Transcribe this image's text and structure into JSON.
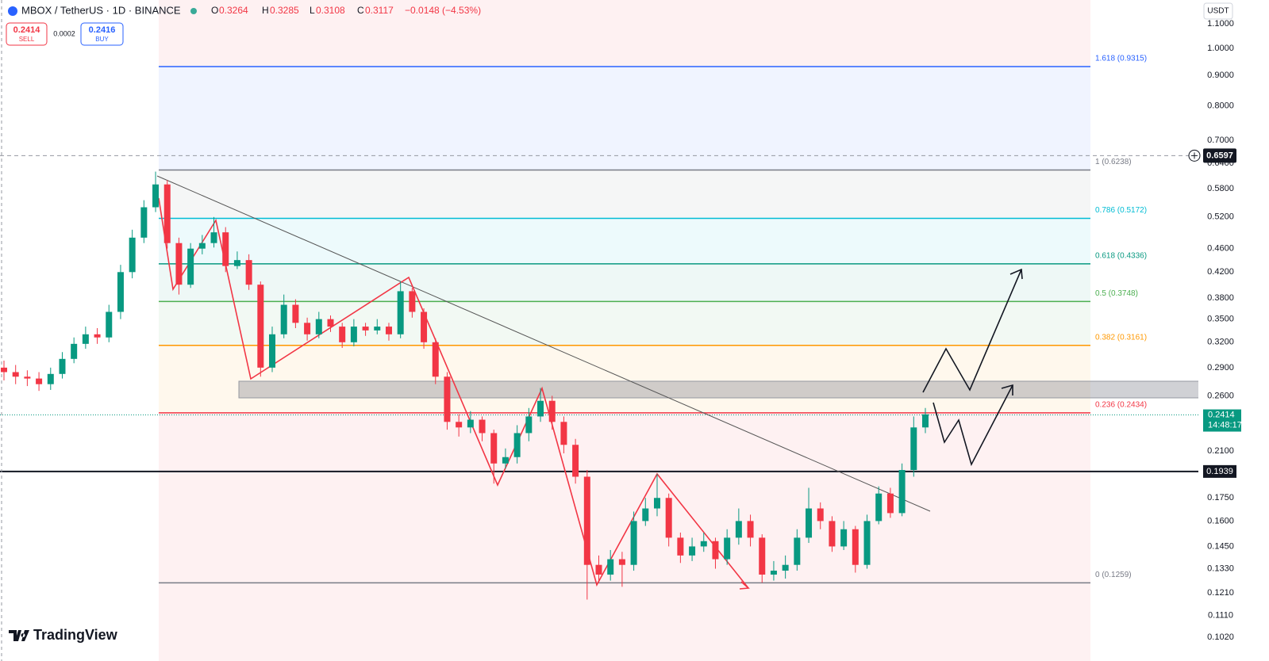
{
  "chart_data": {
    "type": "candlestick",
    "title": "MBOX / TetherUS · 1D · BINANCE",
    "ohlc_letters": [
      "O",
      "H",
      "L",
      "C"
    ],
    "ohlc_values": [
      0.3264,
      0.3285,
      0.3108,
      0.3117
    ],
    "change": {
      "value": -0.0148,
      "label": "−0.0148 (−4.53%)"
    },
    "sell": {
      "value": 0.2414,
      "label": "SELL"
    },
    "spread": 0.0002,
    "buy": {
      "value": 0.2416,
      "label": "BUY"
    },
    "currency": "USDT",
    "brand": "TradingView",
    "log_scale": true,
    "grid": false,
    "up_color": "#089981",
    "down_color": "#f23645",
    "ylim": [
      0.093,
      1.206
    ],
    "yticks": [
      {
        "value": 1.1,
        "label": "1.1000"
      },
      {
        "value": 1,
        "label": "1.0000"
      },
      {
        "value": 0.9,
        "label": "0.9000"
      },
      {
        "value": 0.8,
        "label": "0.8000"
      },
      {
        "value": 0.7,
        "label": "0.7000"
      },
      {
        "value": 0.64,
        "label": "0.6400"
      },
      {
        "value": 0.58,
        "label": "0.5800"
      },
      {
        "value": 0.52,
        "label": "0.5200"
      },
      {
        "value": 0.46,
        "label": "0.4600"
      },
      {
        "value": 0.42,
        "label": "0.4200"
      },
      {
        "value": 0.38,
        "label": "0.3800"
      },
      {
        "value": 0.35,
        "label": "0.3500"
      },
      {
        "value": 0.32,
        "label": "0.3200"
      },
      {
        "value": 0.29,
        "label": "0.2900"
      },
      {
        "value": 0.26,
        "label": "0.2600"
      },
      {
        "value": 0.21,
        "label": "0.2100"
      },
      {
        "value": 0.175,
        "label": "0.1750"
      },
      {
        "value": 0.16,
        "label": "0.1600"
      },
      {
        "value": 0.145,
        "label": "0.1450"
      },
      {
        "value": 0.133,
        "label": "0.1330"
      },
      {
        "value": 0.121,
        "label": "0.1210"
      },
      {
        "value": 0.111,
        "label": "0.1110"
      },
      {
        "value": 0.102,
        "label": "0.1020"
      }
    ],
    "open": [
      0.29,
      0.285,
      0.28,
      0.278,
      0.272,
      0.283,
      0.3,
      0.318,
      0.33,
      0.326,
      0.36,
      0.42,
      0.48,
      0.54,
      0.59,
      0.47,
      0.4,
      0.46,
      0.47,
      0.49,
      0.43,
      0.44,
      0.4,
      0.29,
      0.33,
      0.37,
      0.345,
      0.33,
      0.35,
      0.34,
      0.32,
      0.34,
      0.335,
      0.34,
      0.33,
      0.39,
      0.36,
      0.32,
      0.28,
      0.235,
      0.23,
      0.237,
      0.225,
      0.2,
      0.205,
      0.225,
      0.24,
      0.255,
      0.235,
      0.215,
      0.19,
      0.135,
      0.13,
      0.138,
      0.135,
      0.16,
      0.168,
      0.175,
      0.15,
      0.14,
      0.145,
      0.148,
      0.138,
      0.15,
      0.16,
      0.15,
      0.13,
      0.132,
      0.135,
      0.15,
      0.168,
      0.16,
      0.145,
      0.155,
      0.135,
      0.16,
      0.178,
      0.165,
      0.195,
      0.23
    ],
    "high": [
      0.298,
      0.293,
      0.287,
      0.285,
      0.29,
      0.308,
      0.326,
      0.34,
      0.338,
      0.37,
      0.432,
      0.495,
      0.555,
      0.62,
      0.6,
      0.48,
      0.47,
      0.485,
      0.52,
      0.5,
      0.455,
      0.45,
      0.405,
      0.34,
      0.385,
      0.378,
      0.352,
      0.36,
      0.355,
      0.345,
      0.35,
      0.345,
      0.35,
      0.345,
      0.405,
      0.395,
      0.365,
      0.325,
      0.285,
      0.242,
      0.245,
      0.24,
      0.228,
      0.212,
      0.232,
      0.248,
      0.268,
      0.26,
      0.24,
      0.22,
      0.195,
      0.14,
      0.143,
      0.142,
      0.166,
      0.175,
      0.192,
      0.178,
      0.153,
      0.15,
      0.153,
      0.15,
      0.155,
      0.168,
      0.164,
      0.152,
      0.137,
      0.14,
      0.155,
      0.182,
      0.172,
      0.163,
      0.16,
      0.157,
      0.164,
      0.183,
      0.182,
      0.2,
      0.24,
      0.248
    ],
    "low": [
      0.276,
      0.272,
      0.27,
      0.265,
      0.266,
      0.278,
      0.295,
      0.312,
      0.318,
      0.32,
      0.35,
      0.41,
      0.47,
      0.53,
      0.46,
      0.385,
      0.395,
      0.45,
      0.462,
      0.42,
      0.425,
      0.392,
      0.28,
      0.285,
      0.325,
      0.338,
      0.322,
      0.325,
      0.333,
      0.313,
      0.315,
      0.328,
      0.33,
      0.322,
      0.325,
      0.352,
      0.312,
      0.272,
      0.228,
      0.222,
      0.225,
      0.218,
      0.185,
      0.196,
      0.2,
      0.218,
      0.235,
      0.228,
      0.208,
      0.185,
      0.118,
      0.126,
      0.127,
      0.124,
      0.132,
      0.157,
      0.163,
      0.145,
      0.136,
      0.137,
      0.142,
      0.133,
      0.135,
      0.146,
      0.145,
      0.126,
      0.127,
      0.128,
      0.132,
      0.147,
      0.155,
      0.142,
      0.143,
      0.131,
      0.133,
      0.158,
      0.162,
      0.163,
      0.19,
      0.225
    ],
    "close": [
      0.285,
      0.28,
      0.278,
      0.272,
      0.283,
      0.3,
      0.318,
      0.33,
      0.326,
      0.36,
      0.42,
      0.48,
      0.54,
      0.59,
      0.47,
      0.4,
      0.46,
      0.47,
      0.49,
      0.43,
      0.44,
      0.4,
      0.29,
      0.33,
      0.37,
      0.345,
      0.33,
      0.35,
      0.34,
      0.32,
      0.34,
      0.335,
      0.34,
      0.33,
      0.39,
      0.36,
      0.32,
      0.28,
      0.235,
      0.23,
      0.237,
      0.225,
      0.2,
      0.205,
      0.225,
      0.24,
      0.255,
      0.235,
      0.215,
      0.19,
      0.135,
      0.13,
      0.138,
      0.135,
      0.16,
      0.168,
      0.175,
      0.15,
      0.14,
      0.145,
      0.148,
      0.138,
      0.15,
      0.16,
      0.15,
      0.13,
      0.132,
      0.135,
      0.15,
      0.168,
      0.16,
      0.145,
      0.155,
      0.135,
      0.16,
      0.178,
      0.165,
      0.195,
      0.23,
      0.242
    ],
    "fib_levels": [
      {
        "label": "1.618 (0.9315)",
        "value": 0.9315,
        "color": "#2962ff"
      },
      {
        "label": "1 (0.6238)",
        "value": 0.6238,
        "color": "#787b86"
      },
      {
        "label": "0.786 (0.5172)",
        "value": 0.5172,
        "color": "#00bcd4"
      },
      {
        "label": "0.618 (0.4336)",
        "value": 0.4336,
        "color": "#089981"
      },
      {
        "label": "0.5 (0.3748)",
        "value": 0.3748,
        "color": "#4caf50"
      },
      {
        "label": "0.382 (0.3161)",
        "value": 0.3161,
        "color": "#ff9800"
      },
      {
        "label": "0.236 (0.2434)",
        "value": 0.2434,
        "color": "#f23645"
      },
      {
        "label": "0 (0.1259)",
        "value": 0.1259,
        "color": "#787b86"
      }
    ],
    "crosshair_price": 0.6597,
    "last_price": 0.2414,
    "countdown": "14:48:17",
    "horizontal_line": 0.1939
  }
}
